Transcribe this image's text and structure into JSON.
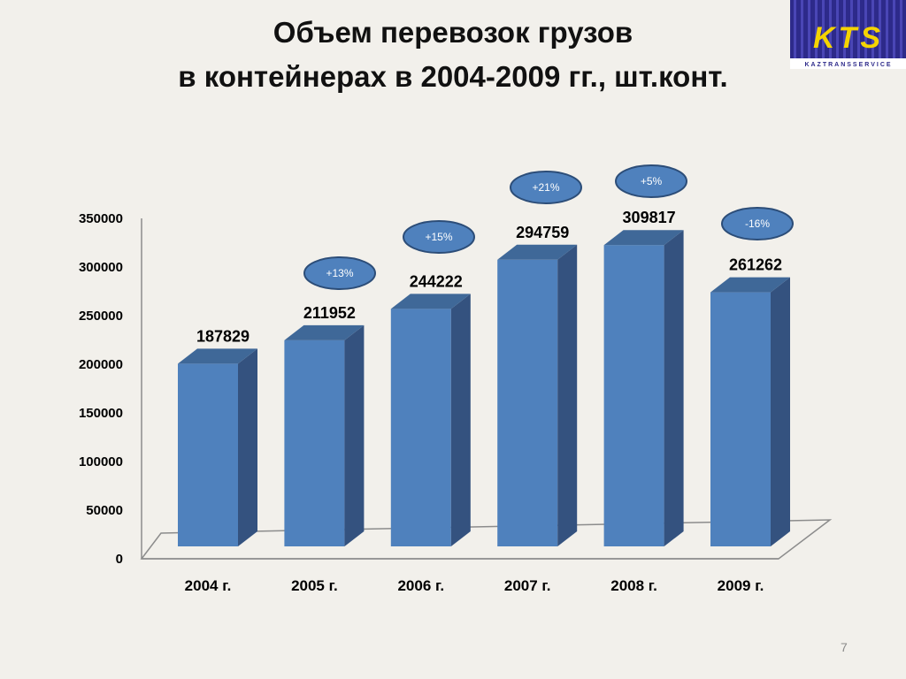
{
  "slide": {
    "title_line1": "Объем перевозок грузов",
    "title_line2": "в контейнерах в 2004-2009 гг., шт.конт.",
    "page_number": "7"
  },
  "logo": {
    "text": "KTS",
    "subtext": "KAZTRANSSERVICE",
    "colors": {
      "background": "#2d2a8a",
      "lines": "#4a46b5",
      "letters": "#f5d400"
    }
  },
  "chart_data": {
    "type": "bar",
    "title": "Объем перевозок грузов в контейнерах в 2004-2009 гг., шт.конт.",
    "categories": [
      "2004 г.",
      "2005 г.",
      "2006 г.",
      "2007 г.",
      "2008 г.",
      "2009 г."
    ],
    "values": [
      187829,
      211952,
      244222,
      294759,
      309817,
      261262
    ],
    "value_labels": [
      "187829",
      "211952",
      "244222",
      "294759",
      "309817",
      "261262"
    ],
    "growth_labels": [
      "",
      "+13%",
      "+15%",
      "+21%",
      "+5%",
      "-16%"
    ],
    "yticks": [
      "0",
      "50000",
      "100000",
      "150000",
      "200000",
      "250000",
      "300000",
      "350000"
    ],
    "ylim": [
      0,
      350000
    ],
    "grid": false,
    "legend": "none",
    "style": "3d-column",
    "colors": {
      "bar_front": "#4f81bd",
      "bar_side": "#34527f",
      "bar_top": "#3f6898",
      "bubble_fill": "#4f81bd",
      "bubble_border": "#2c4d78"
    }
  }
}
